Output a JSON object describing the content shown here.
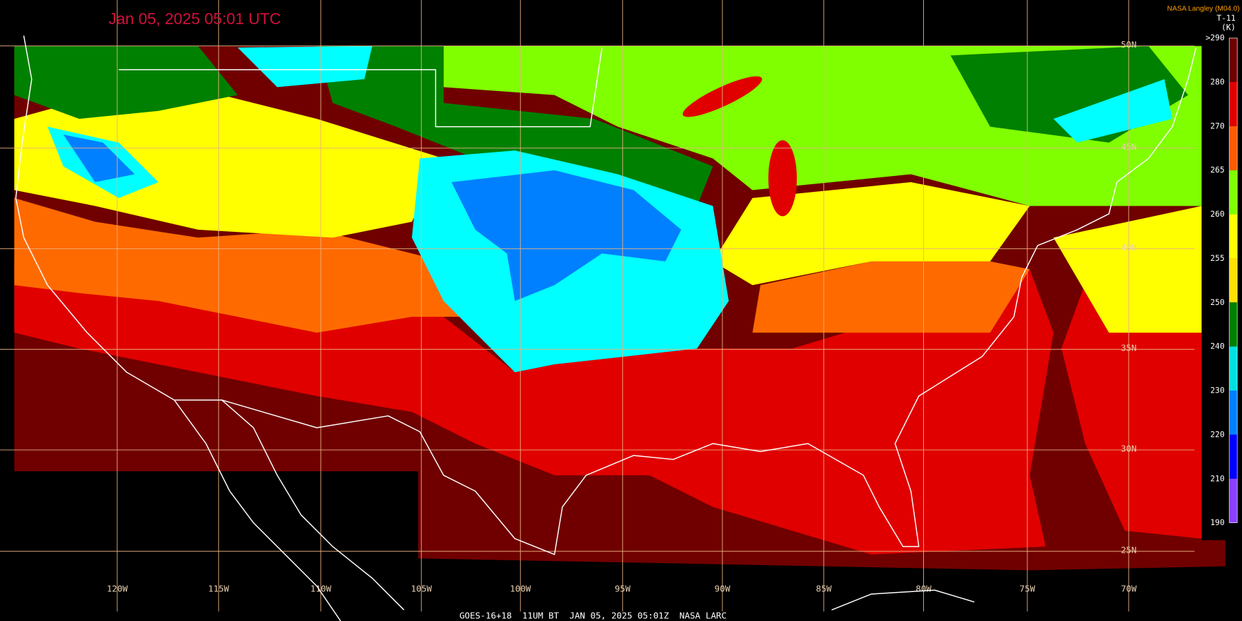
{
  "title": "Jan 05, 2025 05:01 UTC",
  "credit": "NASA Langley (M04.0)",
  "product": "T-11",
  "unit": "(K)",
  "colorbar": [
    {
      "label": ">290",
      "color": "#6e0000"
    },
    {
      "label": "280",
      "color": "#e00000"
    },
    {
      "label": "270",
      "color": "#ff5a00"
    },
    {
      "label": "265",
      "color": "#80ff00"
    },
    {
      "label": "260",
      "color": "#ffff00"
    },
    {
      "label": "255",
      "color": "#ffe000"
    },
    {
      "label": "250",
      "color": "#008000"
    },
    {
      "label": "240",
      "color": "#00e0e0"
    },
    {
      "label": "230",
      "color": "#0080ff"
    },
    {
      "label": "220",
      "color": "#0000ff"
    },
    {
      "label": "210",
      "color": "#8a40ff"
    },
    {
      "label": "190",
      "color": "#8a40ff"
    }
  ],
  "latitudes": [
    "50N",
    "45N",
    "40N",
    "35N",
    "30N",
    "25N"
  ],
  "longitudes": [
    "120W",
    "115W",
    "110W",
    "105W",
    "100W",
    "95W",
    "90W",
    "85W",
    "80W",
    "75W",
    "70W"
  ],
  "footer": "GOES-16+18  11UM BT  JAN 05, 2025 05:01Z  NASA LARC"
}
